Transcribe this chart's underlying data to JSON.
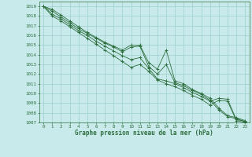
{
  "xlabel": "Graphe pression niveau de la mer (hPa)",
  "ylim": [
    1007,
    1019.5
  ],
  "xlim": [
    -0.5,
    23.5
  ],
  "yticks": [
    1007,
    1008,
    1009,
    1010,
    1011,
    1012,
    1013,
    1014,
    1015,
    1016,
    1017,
    1018,
    1019
  ],
  "xticks": [
    0,
    1,
    2,
    3,
    4,
    5,
    6,
    7,
    8,
    9,
    10,
    11,
    12,
    13,
    14,
    15,
    16,
    17,
    18,
    19,
    20,
    21,
    22,
    23
  ],
  "bg_color": "#c8eaea",
  "grid_color": "#9ecece",
  "line_color": "#2d6e3e",
  "series": [
    [
      1019.0,
      1018.7,
      1018.1,
      1017.5,
      1016.9,
      1016.3,
      1015.8,
      1015.3,
      1014.9,
      1014.5,
      1015.0,
      1015.0,
      1013.2,
      1012.5,
      1014.5,
      1011.3,
      1011.0,
      1010.4,
      1010.0,
      1009.5,
      1008.5,
      1007.7,
      1007.5,
      1007.2
    ],
    [
      1019.0,
      1018.5,
      1017.9,
      1017.3,
      1016.7,
      1016.2,
      1015.7,
      1015.2,
      1014.8,
      1014.3,
      1014.8,
      1014.9,
      1012.8,
      1012.0,
      1013.0,
      1011.1,
      1010.8,
      1010.3,
      1009.9,
      1009.3,
      1008.3,
      1007.6,
      1007.4,
      1007.1
    ],
    [
      1019.0,
      1018.2,
      1017.7,
      1017.1,
      1016.5,
      1016.0,
      1015.4,
      1014.9,
      1014.4,
      1013.9,
      1013.5,
      1013.7,
      1012.6,
      1011.5,
      1011.3,
      1011.0,
      1010.6,
      1010.1,
      1009.7,
      1009.2,
      1009.5,
      1009.4,
      1007.3,
      1007.1
    ],
    [
      1019.0,
      1018.0,
      1017.5,
      1016.9,
      1016.3,
      1015.7,
      1015.1,
      1014.5,
      1013.9,
      1013.3,
      1012.7,
      1013.0,
      1012.3,
      1011.4,
      1011.0,
      1010.7,
      1010.3,
      1009.8,
      1009.4,
      1008.8,
      1009.3,
      1009.2,
      1007.2,
      1007.0
    ]
  ]
}
